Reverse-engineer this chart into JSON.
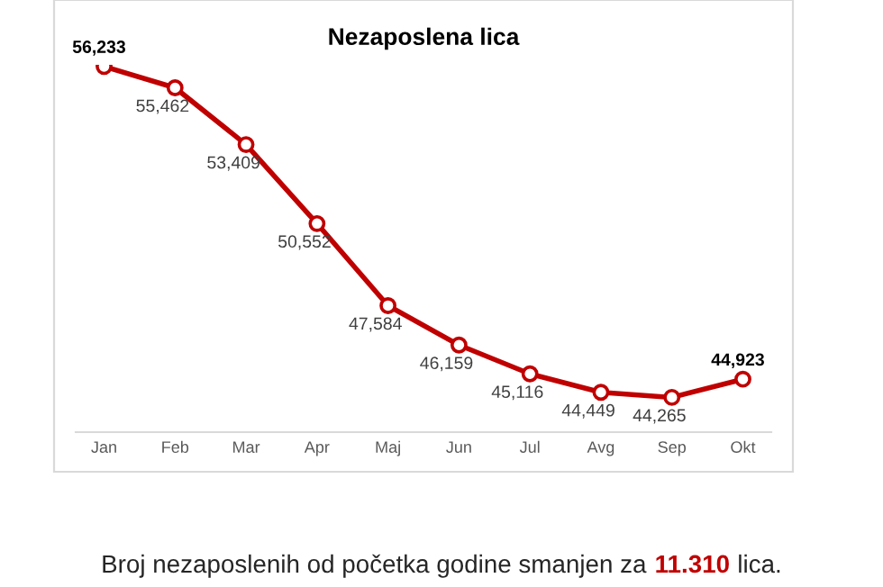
{
  "chart_data": {
    "type": "line",
    "title": "Nezaposlena lica",
    "categories": [
      "Jan",
      "Feb",
      "Mar",
      "Apr",
      "Maj",
      "Jun",
      "Jul",
      "Avg",
      "Sep",
      "Okt"
    ],
    "series": [
      {
        "color": "#c00000",
        "values": [
          56233,
          55462,
          53409,
          50552,
          47584,
          46159,
          45116,
          44449,
          44265,
          44923
        ],
        "value_labels": [
          "56,233",
          "55,462",
          "53,409",
          "50,552",
          "47,584",
          "46,159",
          "45,116",
          "44,449",
          "44,265",
          "44,923"
        ]
      }
    ],
    "marker": "circle",
    "line_style": "solid",
    "grid": false,
    "legend": false,
    "tick_labels": "x",
    "annotations": [
      "Broj nezaposlenih od početka godine smanjen za ",
      "11.310",
      " lica."
    ]
  }
}
